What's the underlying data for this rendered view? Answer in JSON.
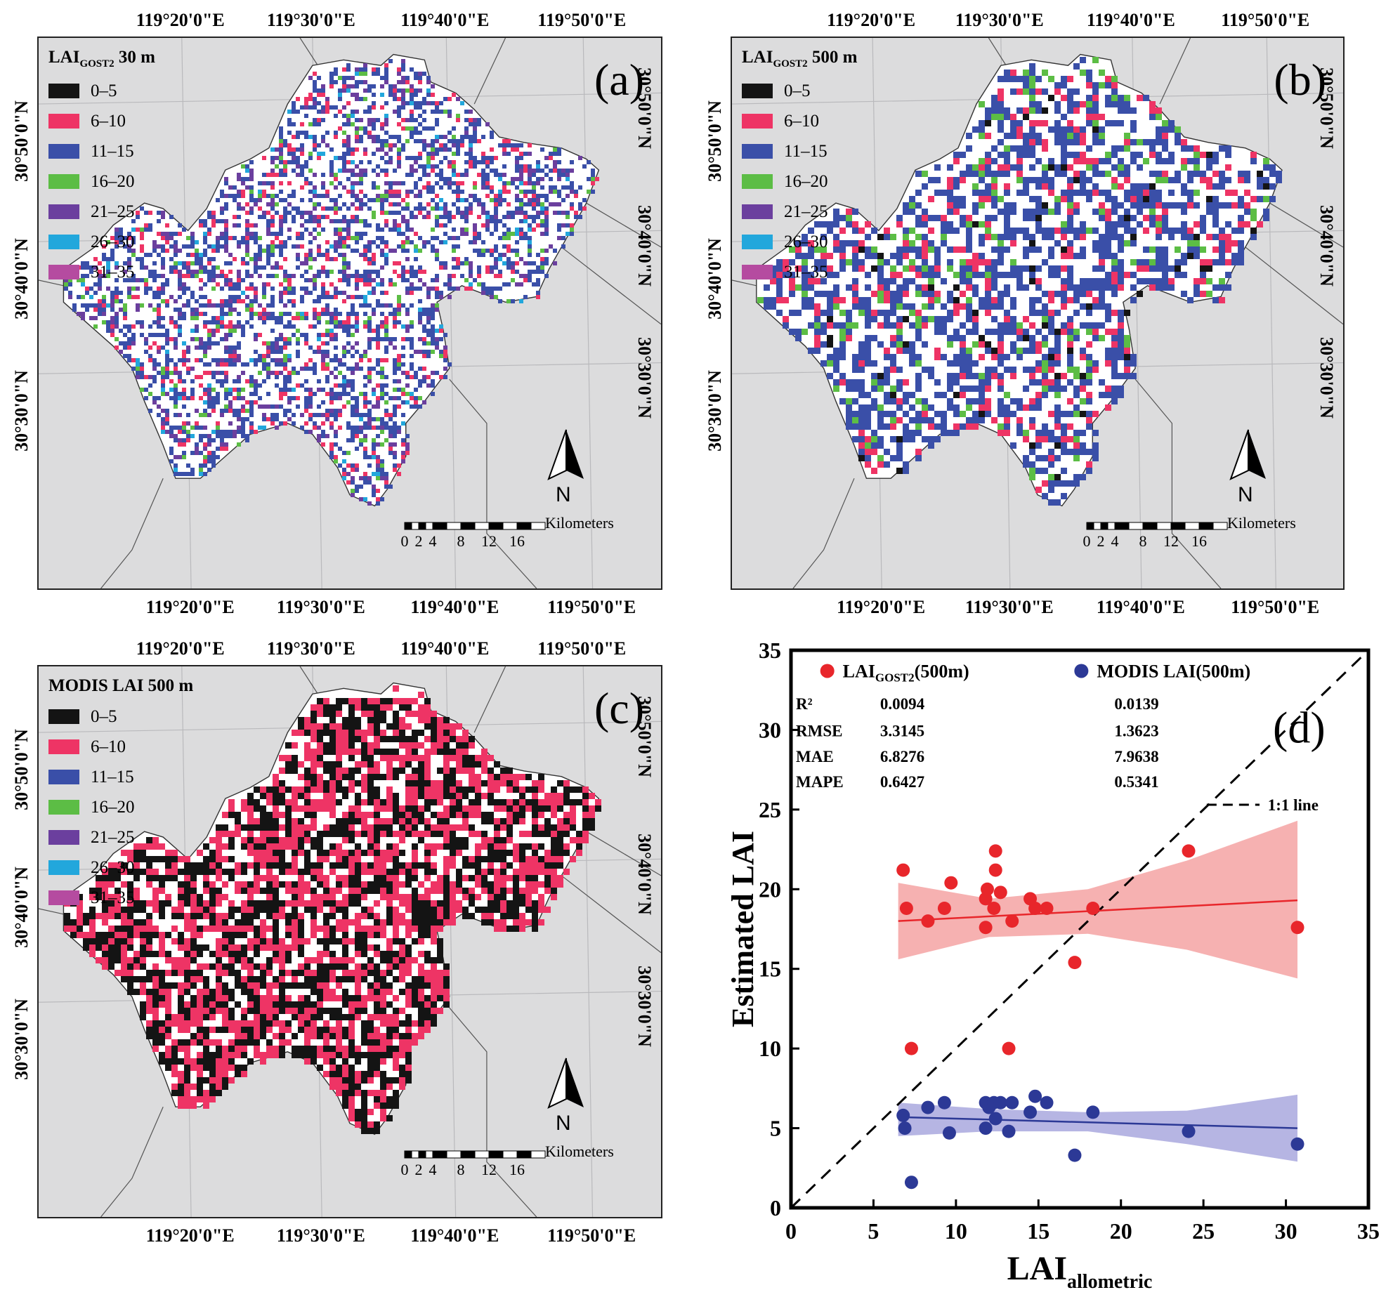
{
  "panels": [
    {
      "label": "(a)",
      "legend_title_main": "LAI",
      "legend_title_sub": "GOST2",
      "legend_title_rest": " 30 m"
    },
    {
      "label": "(b)",
      "legend_title_main": "LAI",
      "legend_title_sub": "GOST2",
      "legend_title_rest": " 500 m"
    },
    {
      "label": "(c)",
      "legend_title_main": "MODIS LAI 500 m",
      "legend_title_sub": "",
      "legend_title_rest": ""
    }
  ],
  "legend_classes": [
    {
      "label": "0–5",
      "color": "#141414"
    },
    {
      "label": "6–10",
      "color": "#ee3465"
    },
    {
      "label": "11–15",
      "color": "#3a4fa8"
    },
    {
      "label": "16–20",
      "color": "#5cbd45"
    },
    {
      "label": "21–25",
      "color": "#6b3f9e"
    },
    {
      "label": "26–30",
      "color": "#22a7dc"
    },
    {
      "label": "31–35",
      "color": "#b54ba0"
    }
  ],
  "longitude_labels": [
    "119°20'0\"E",
    "119°30'0\"E",
    "119°40'0\"E",
    "119°50'0\"E"
  ],
  "latitude_labels_left": [
    "30°50'0\"N",
    "30°40'0\"N",
    "30°30'0\"N"
  ],
  "latitude_labels_right": [
    "30°50'0\"N",
    "30°40'0\"N",
    "30°30'0\"N"
  ],
  "north_label": "N",
  "scalebar": {
    "unit": "Kilometers",
    "ticks": [
      "0",
      "2",
      "4",
      "8",
      "12",
      "16"
    ]
  },
  "chart_data": {
    "type": "scatter",
    "panel_label": "(d)",
    "xlabel_main": "LAI",
    "xlabel_sub": "allometric",
    "ylabel": "Estimated LAI",
    "xlim": [
      0,
      35
    ],
    "ylim": [
      0,
      35
    ],
    "xticks": [
      "0",
      "5",
      "10",
      "15",
      "20",
      "25",
      "30",
      "35"
    ],
    "yticks": [
      "0",
      "5",
      "10",
      "15",
      "20",
      "25",
      "30",
      "35"
    ],
    "reference_line_label": "1:1 line",
    "series": [
      {
        "name_main": "LAI",
        "name_sub": "GOST2",
        "name_rest": "(500m)",
        "color": "#e8262b",
        "band_color": "#f5a3a3",
        "points": [
          [
            6.8,
            21.2
          ],
          [
            7.0,
            18.8
          ],
          [
            7.3,
            10.0
          ],
          [
            8.3,
            18.0
          ],
          [
            9.3,
            18.8
          ],
          [
            9.7,
            20.4
          ],
          [
            11.8,
            19.4
          ],
          [
            11.8,
            17.6
          ],
          [
            11.9,
            20.0
          ],
          [
            12.3,
            18.8
          ],
          [
            12.4,
            21.2
          ],
          [
            12.4,
            22.4
          ],
          [
            12.7,
            19.8
          ],
          [
            13.2,
            10.0
          ],
          [
            13.4,
            18.0
          ],
          [
            14.5,
            19.4
          ],
          [
            14.8,
            18.8
          ],
          [
            15.5,
            18.8
          ],
          [
            17.2,
            15.4
          ],
          [
            18.3,
            18.8
          ],
          [
            24.1,
            22.4
          ],
          [
            30.7,
            17.6
          ]
        ],
        "fit": {
          "x0": 6.5,
          "y0": 18.0,
          "x1": 30.7,
          "y1": 19.3
        },
        "band": {
          "lower": [
            [
              6.5,
              15.6
            ],
            [
              12,
              17.0
            ],
            [
              18,
              17.2
            ],
            [
              24,
              16.2
            ],
            [
              30.7,
              14.4
            ]
          ],
          "upper": [
            [
              6.5,
              20.4
            ],
            [
              12,
              19.4
            ],
            [
              18,
              20.0
            ],
            [
              24,
              21.8
            ],
            [
              30.7,
              24.3
            ]
          ]
        }
      },
      {
        "name_main": "MODIS LAI",
        "name_sub": "",
        "name_rest": "(500m)",
        "color": "#2c3996",
        "band_color": "#a9a8de",
        "points": [
          [
            6.8,
            5.8
          ],
          [
            6.9,
            5.0
          ],
          [
            7.3,
            1.6
          ],
          [
            8.3,
            6.3
          ],
          [
            9.3,
            6.6
          ],
          [
            9.6,
            4.7
          ],
          [
            11.8,
            6.6
          ],
          [
            11.8,
            5.0
          ],
          [
            12.0,
            6.3
          ],
          [
            12.3,
            6.6
          ],
          [
            12.4,
            5.6
          ],
          [
            12.7,
            6.6
          ],
          [
            13.2,
            4.8
          ],
          [
            13.4,
            6.6
          ],
          [
            14.5,
            6.0
          ],
          [
            14.8,
            7.0
          ],
          [
            15.5,
            6.6
          ],
          [
            17.2,
            3.3
          ],
          [
            18.3,
            6.0
          ],
          [
            24.1,
            4.8
          ],
          [
            30.7,
            4.0
          ]
        ],
        "fit": {
          "x0": 6.5,
          "y0": 5.7,
          "x1": 30.7,
          "y1": 5.0
        },
        "band": {
          "lower": [
            [
              6.5,
              4.5
            ],
            [
              12,
              4.8
            ],
            [
              18,
              4.8
            ],
            [
              24,
              4.0
            ],
            [
              30.7,
              2.9
            ]
          ],
          "upper": [
            [
              6.5,
              6.6
            ],
            [
              12,
              6.2
            ],
            [
              18,
              6.0
            ],
            [
              24,
              6.1
            ],
            [
              30.7,
              7.1
            ]
          ]
        }
      }
    ],
    "stats": {
      "rows": [
        {
          "label": "R²",
          "v1": "0.0094",
          "v2": "0.0139"
        },
        {
          "label": "RMSE",
          "v1": "3.3145",
          "v2": "1.3623"
        },
        {
          "label": "MAE",
          "v1": "6.8276",
          "v2": "7.9638"
        },
        {
          "label": "MAPE",
          "v1": "0.6427",
          "v2": "0.5341"
        }
      ]
    }
  }
}
